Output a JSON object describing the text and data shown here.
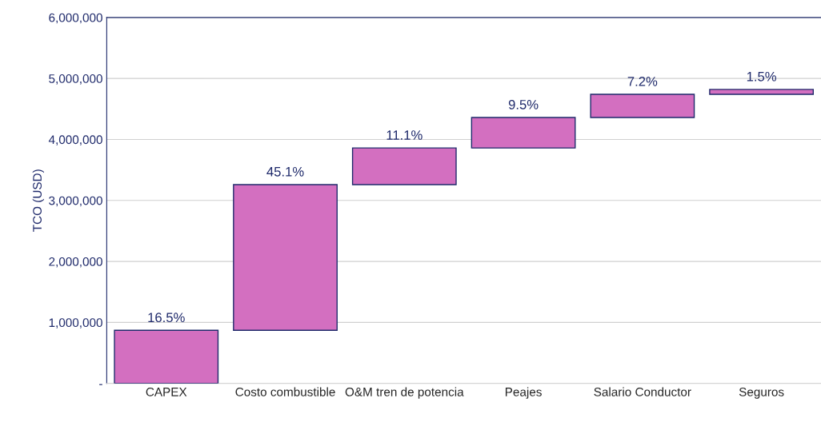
{
  "chart_data": {
    "type": "bar",
    "ylabel": "TCO (USD)",
    "categories": [
      "CAPEX",
      "Costo combustible",
      "O&M tren de potencia",
      "Peajes",
      "Salario Conductor",
      "Seguros"
    ],
    "values": [
      870000,
      2390000,
      600000,
      500000,
      380000,
      80000
    ],
    "base": [
      0,
      870000,
      3260000,
      3860000,
      4360000,
      4740000
    ],
    "annotations": [
      {
        "text": "16.5%",
        "x": "CAPEX",
        "y": 870000
      },
      {
        "text": "45.1%",
        "x": "Costo combustible",
        "y": 3260000
      },
      {
        "text": "11.1%",
        "x": "O&M tren de potencia",
        "y": 3860000
      },
      {
        "text": "9.5%",
        "x": "Peajes",
        "y": 4360000
      },
      {
        "text": "7.2%",
        "x": "Salario Conductor",
        "y": 4740000
      },
      {
        "text": "1.5%",
        "x": "Seguros",
        "y": 4820000
      }
    ],
    "color": "#d36fc0",
    "ylim": [
      0,
      6000000
    ],
    "yticks": [
      {
        "value": 0,
        "label": "-"
      },
      {
        "value": 1000000,
        "label": "1,000,000"
      },
      {
        "value": 2000000,
        "label": "2,000,000"
      },
      {
        "value": 3000000,
        "label": "3,000,000"
      },
      {
        "value": 4000000,
        "label": "4,000,000"
      },
      {
        "value": 5000000,
        "label": "5,000,000"
      },
      {
        "value": 6000000,
        "label": "6,000,000"
      }
    ],
    "grid": "y",
    "legend": false
  }
}
